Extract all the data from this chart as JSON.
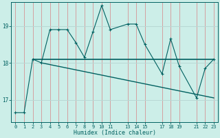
{
  "xlabel": "Humidex (Indice chaleur)",
  "background_color": "#cceee8",
  "grid_color_v": "#d4a0a0",
  "grid_color_h": "#b8d8d4",
  "line_color": "#006060",
  "xlim": [
    -0.5,
    23.5
  ],
  "ylim": [
    16.4,
    19.65
  ],
  "yticks": [
    17,
    18,
    19
  ],
  "xticks": [
    0,
    1,
    2,
    3,
    4,
    5,
    6,
    7,
    8,
    9,
    10,
    11,
    13,
    14,
    15,
    17,
    18,
    19,
    21,
    22,
    23
  ],
  "series1_x": [
    0,
    1,
    2,
    3,
    4,
    5,
    6,
    7,
    8,
    9,
    10,
    11,
    13,
    14,
    15,
    17,
    18,
    19,
    21,
    22,
    23
  ],
  "series1_y": [
    16.65,
    16.65,
    18.1,
    18.0,
    18.9,
    18.9,
    18.9,
    18.55,
    18.15,
    18.85,
    19.55,
    18.9,
    19.05,
    19.05,
    18.5,
    17.7,
    18.65,
    17.9,
    17.05,
    17.85,
    18.1
  ],
  "series2_x": [
    2,
    23
  ],
  "series2_y": [
    18.1,
    18.1
  ],
  "series3_x": [
    3,
    23
  ],
  "series3_y": [
    18.0,
    17.05
  ],
  "figsize": [
    3.2,
    2.0
  ],
  "dpi": 100
}
